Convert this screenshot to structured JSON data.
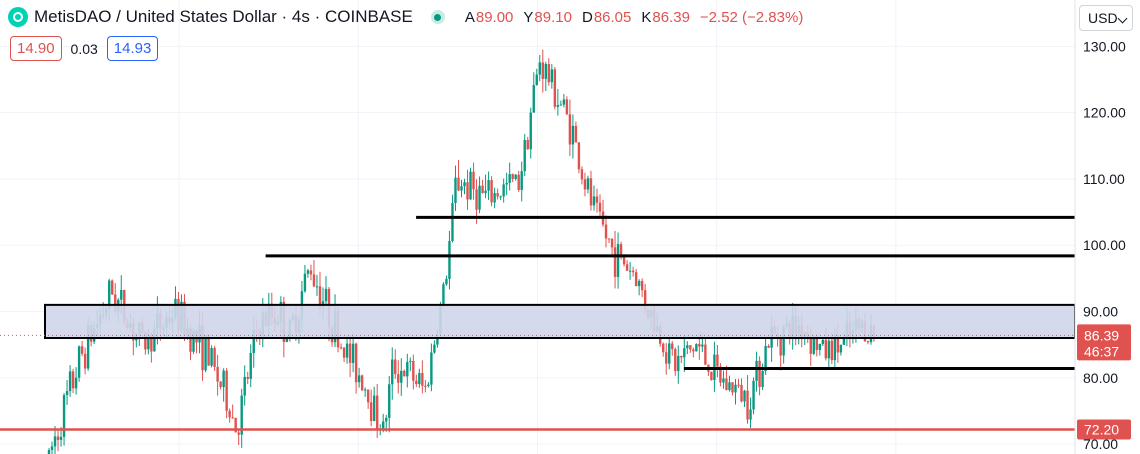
{
  "header": {
    "symbol_title": "MetisDAO / United States Dollar · 4s · COINBASE",
    "ohlc": [
      {
        "label": "A",
        "value": "89.00"
      },
      {
        "label": "Y",
        "value": "89.10"
      },
      {
        "label": "D",
        "value": "86.05"
      },
      {
        "label": "K",
        "value": "86.39"
      }
    ],
    "change": "−2.52 (−2.83%)"
  },
  "trade": {
    "sell": "14.90",
    "spread": "0.03",
    "buy": "14.93"
  },
  "currency": "USD",
  "colors": {
    "up": "#089981",
    "down": "#e0524f",
    "zone_fill": "#cfd6ea",
    "level_line": "#000000",
    "horizontal_red": "#e0524f"
  },
  "chart_data": {
    "type": "candlestick",
    "y_axis": {
      "ticks": [
        70,
        80,
        90,
        100,
        110,
        120,
        130
      ],
      "range": [
        68.5,
        137
      ]
    },
    "price_label": {
      "price": "86.39",
      "countdown": "46:37"
    },
    "red_line_label": "72.20",
    "red_line_value": 72.2,
    "zone": {
      "low": 86,
      "high": 91
    },
    "horizontal_levels": [
      {
        "y": 104.2,
        "x_from": 0.365
      },
      {
        "y": 98.4,
        "x_from": 0.233
      },
      {
        "y": 81.4,
        "x_from": 0.6
      }
    ],
    "close_path": [
      [
        0,
        68
      ],
      [
        0.03,
        83
      ],
      [
        0.06,
        93
      ],
      [
        0.09,
        85
      ],
      [
        0.12,
        90
      ],
      [
        0.15,
        84
      ],
      [
        0.17,
        77
      ],
      [
        0.18,
        72
      ],
      [
        0.2,
        88
      ],
      [
        0.22,
        90
      ],
      [
        0.23,
        86
      ],
      [
        0.25,
        97
      ],
      [
        0.28,
        85
      ],
      [
        0.3,
        80
      ],
      [
        0.32,
        72
      ],
      [
        0.33,
        82
      ],
      [
        0.35,
        80
      ],
      [
        0.36,
        78
      ],
      [
        0.38,
        95
      ],
      [
        0.39,
        110
      ],
      [
        0.42,
        107
      ],
      [
        0.45,
        110
      ],
      [
        0.47,
        128
      ],
      [
        0.5,
        118
      ],
      [
        0.51,
        111
      ],
      [
        0.52,
        106
      ],
      [
        0.54,
        99
      ],
      [
        0.56,
        96
      ],
      [
        0.58,
        88
      ],
      [
        0.6,
        82
      ],
      [
        0.62,
        85
      ],
      [
        0.64,
        80
      ],
      [
        0.67,
        77
      ],
      [
        0.69,
        86
      ],
      [
        0.72,
        88
      ],
      [
        0.74,
        84
      ],
      [
        0.76,
        85
      ],
      [
        0.78,
        88
      ],
      [
        0.79,
        86.4
      ]
    ]
  }
}
